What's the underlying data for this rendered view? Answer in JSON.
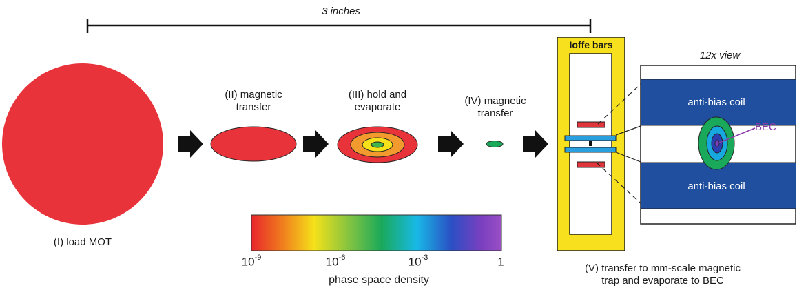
{
  "scale_bar": {
    "label": "3 inches"
  },
  "stages": [
    {
      "id": "I",
      "label_lines": [
        "(I) load MOT"
      ]
    },
    {
      "id": "II",
      "label_lines": [
        "(II) magnetic",
        "transfer"
      ]
    },
    {
      "id": "III",
      "label_lines": [
        "(III) hold and",
        "evaporate"
      ]
    },
    {
      "id": "IV",
      "label_lines": [
        "(IV) magnetic",
        "transfer"
      ]
    },
    {
      "id": "V",
      "label_lines": [
        "(V) transfer to mm-scale magnetic",
        "trap and evaporate to BEC"
      ]
    }
  ],
  "ioffe": {
    "label": "Ioffe bars"
  },
  "zoom": {
    "title": "12x view",
    "coil_top": "anti-bias coil",
    "coil_bottom": "anti-bias coil",
    "bec_label": "BEC"
  },
  "colorbar": {
    "ticks": [
      {
        "base": "10",
        "exp": "-9"
      },
      {
        "base": "10",
        "exp": "-6"
      },
      {
        "base": "10",
        "exp": "-3"
      },
      {
        "base": "1",
        "exp": ""
      }
    ],
    "xlabel": "phase space density",
    "colors": [
      "#e8262c",
      "#f07a1e",
      "#f5e11a",
      "#7cc243",
      "#1aa95a",
      "#18b9e6",
      "#2b4fc4",
      "#7a3fbf",
      "#9b4fc4"
    ]
  },
  "colors": {
    "mot": "#e8333a",
    "arrow": "#111111",
    "ioffe_frame": "#f7e11e",
    "coil": "#1f4f9e",
    "bar_red": "#e0363b",
    "bar_blue": "#2a9fe0",
    "bec_purple": "#8a3aa8"
  }
}
